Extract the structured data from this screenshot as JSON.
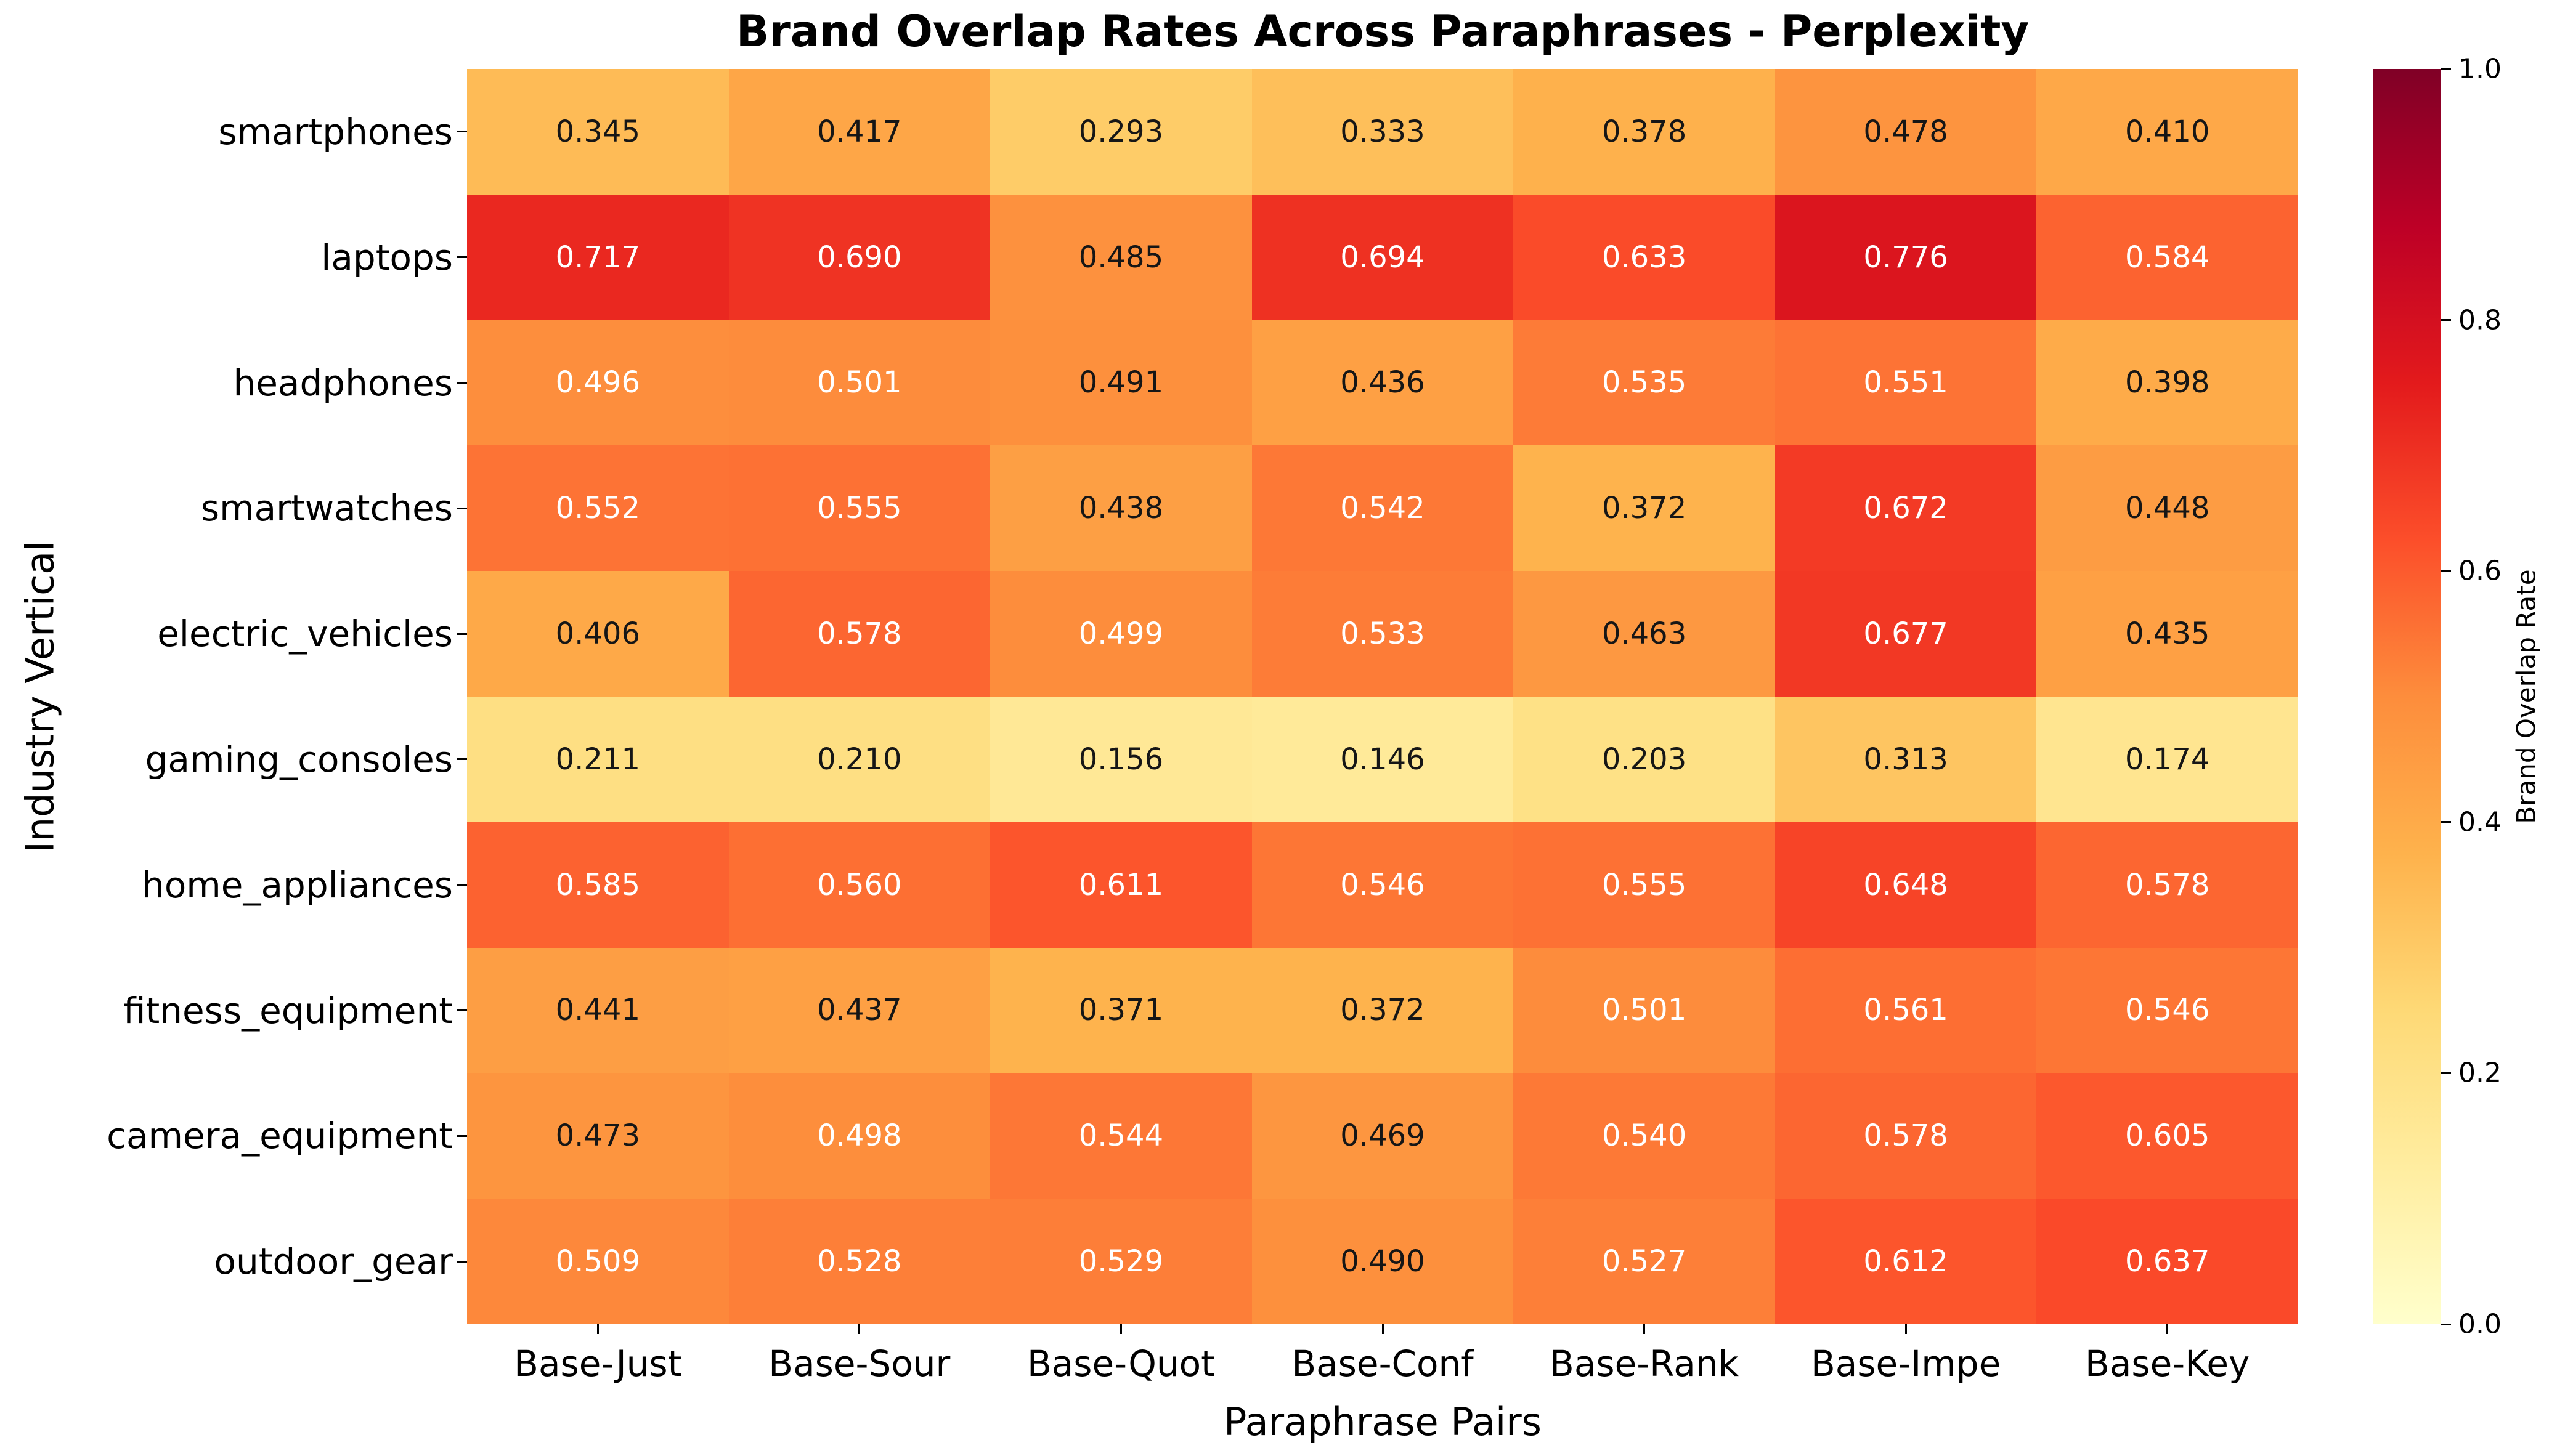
{
  "chart_data": {
    "type": "heatmap",
    "title": "Brand Overlap Rates Across Paraphrases - Perplexity",
    "xlabel": "Paraphrase Pairs",
    "ylabel": "Industry Vertical",
    "x_categories": [
      "Base-Just",
      "Base-Sour",
      "Base-Quot",
      "Base-Conf",
      "Base-Rank",
      "Base-Impe",
      "Base-Key"
    ],
    "y_categories": [
      "smartphones",
      "laptops",
      "headphones",
      "smartwatches",
      "electric_vehicles",
      "gaming_consoles",
      "home_appliances",
      "fitness_equipment",
      "camera_equipment",
      "outdoor_gear"
    ],
    "values": [
      [
        0.345,
        0.417,
        0.293,
        0.333,
        0.378,
        0.478,
        0.41
      ],
      [
        0.717,
        0.69,
        0.485,
        0.694,
        0.633,
        0.776,
        0.584
      ],
      [
        0.496,
        0.501,
        0.491,
        0.436,
        0.535,
        0.551,
        0.398
      ],
      [
        0.552,
        0.555,
        0.438,
        0.542,
        0.372,
        0.672,
        0.448
      ],
      [
        0.406,
        0.578,
        0.499,
        0.533,
        0.463,
        0.677,
        0.435
      ],
      [
        0.211,
        0.21,
        0.156,
        0.146,
        0.203,
        0.313,
        0.174
      ],
      [
        0.585,
        0.56,
        0.611,
        0.546,
        0.555,
        0.648,
        0.578
      ],
      [
        0.441,
        0.437,
        0.371,
        0.372,
        0.501,
        0.561,
        0.546
      ],
      [
        0.473,
        0.498,
        0.544,
        0.469,
        0.54,
        0.578,
        0.605
      ],
      [
        0.509,
        0.528,
        0.529,
        0.49,
        0.527,
        0.612,
        0.637
      ]
    ],
    "value_format": ".3f",
    "vmin": 0.0,
    "vmax": 1.0,
    "colormap": "YlOrRd",
    "colormap_stops": [
      "#ffffcc",
      "#ffeda0",
      "#fed976",
      "#feb24c",
      "#fd8d3c",
      "#fc4e2a",
      "#e31a1c",
      "#bd0026",
      "#800026"
    ],
    "annotation_colors": {
      "dark_text": "#161616",
      "light_text": "#ffffff",
      "white_text_threshold": 0.495
    },
    "colorbar": {
      "label": "Brand Overlap Rate",
      "ticks": [
        "0.0",
        "0.2",
        "0.4",
        "0.6",
        "0.8",
        "1.0"
      ]
    },
    "legend_position": "right",
    "grid": false
  }
}
